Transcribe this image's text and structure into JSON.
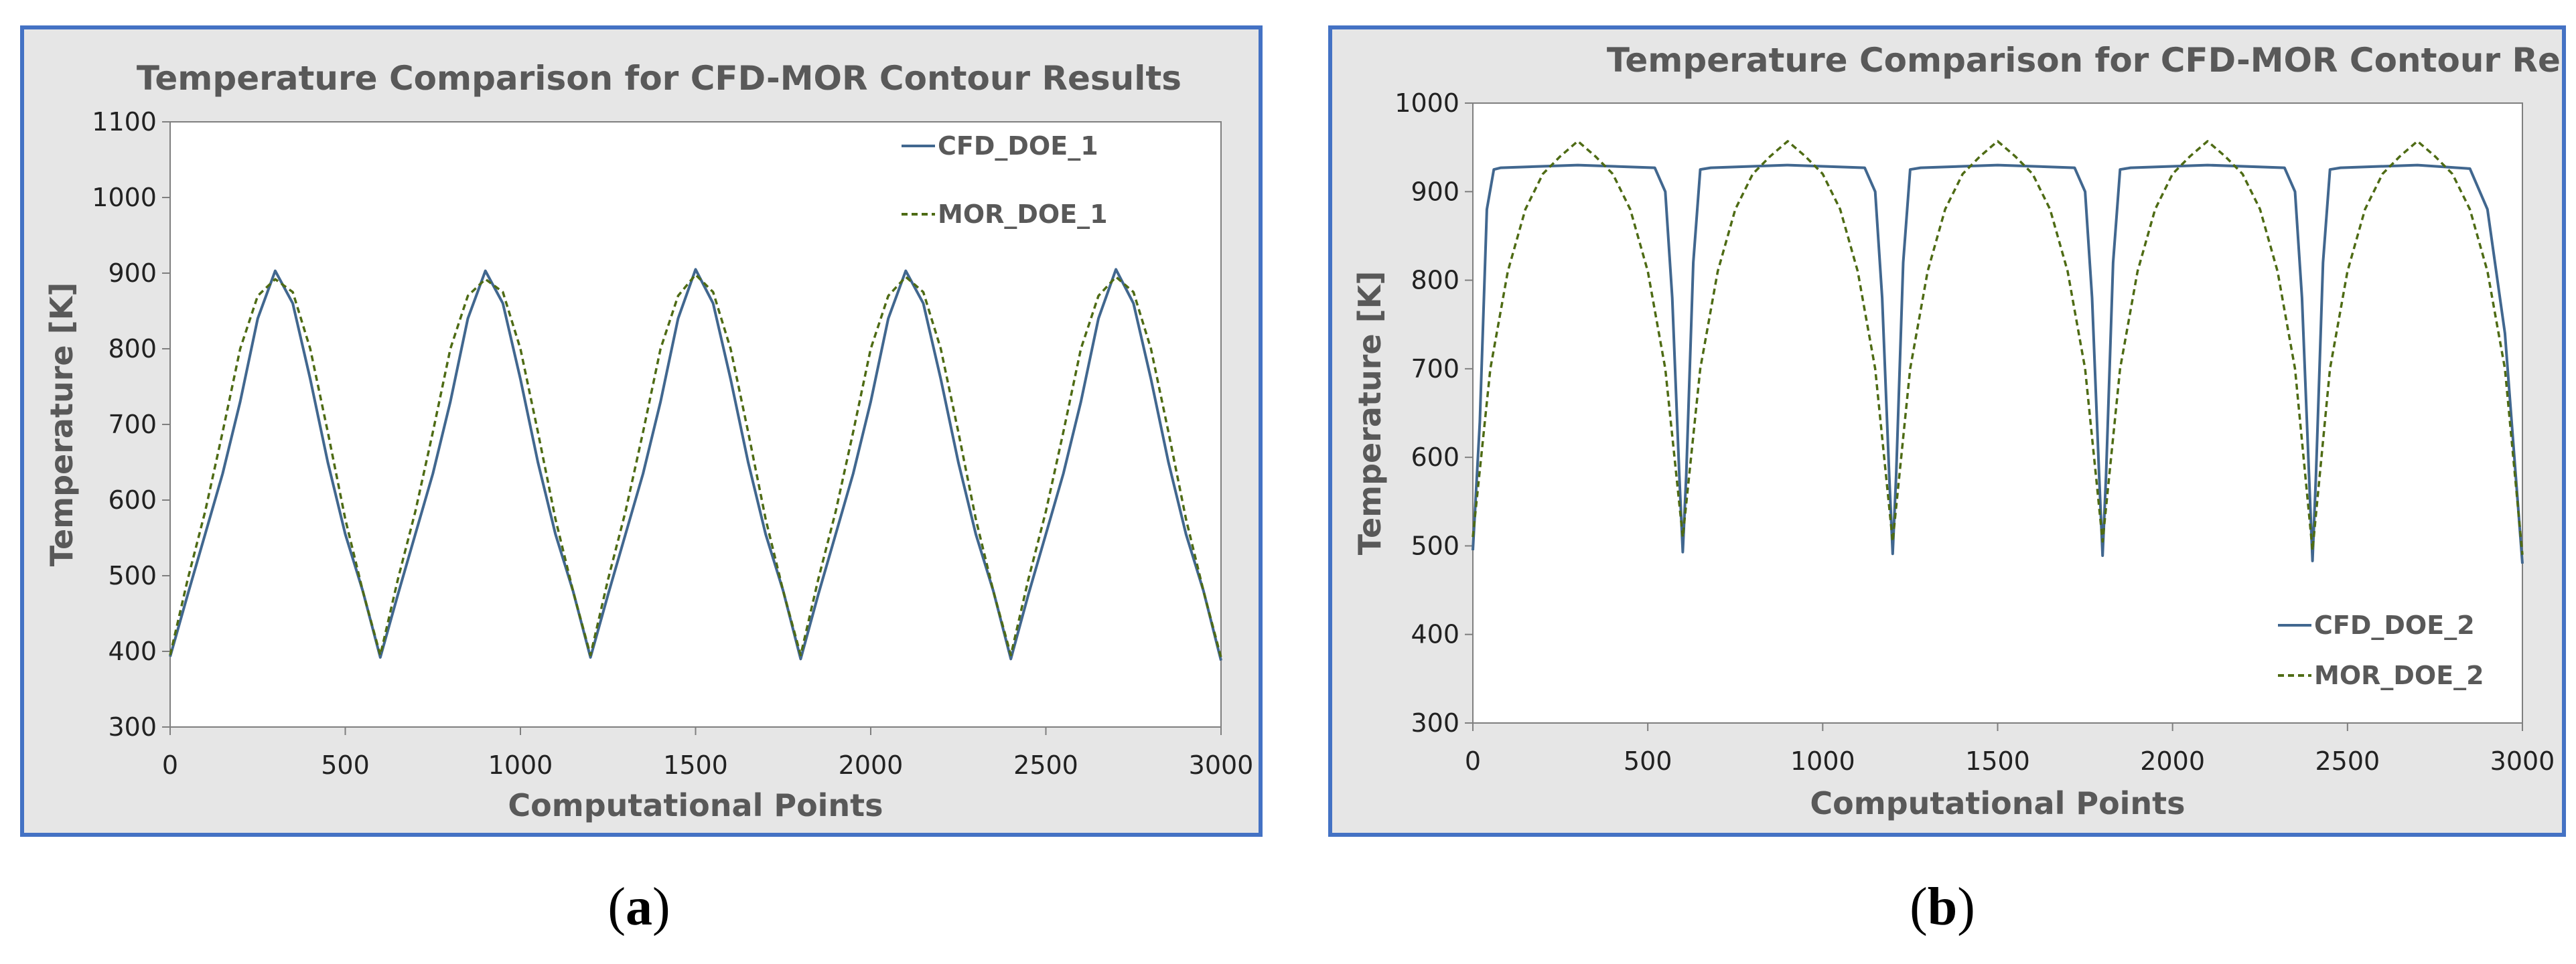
{
  "captions": {
    "a": "a",
    "b": "b"
  },
  "colors": {
    "cfd": "#41678F",
    "mor": "#4E6B14",
    "frame": "#4472C4",
    "panel_bg": "#e6e6e6"
  },
  "chart_data": [
    {
      "type": "line",
      "title": "Temperature Comparison for CFD-MOR Contour Results",
      "xlabel": "Computational Points",
      "ylabel": "Temperature [K]",
      "xlim": [
        0,
        3000
      ],
      "ylim": [
        300,
        1100
      ],
      "xticks": [
        0,
        500,
        1000,
        1500,
        2000,
        2500,
        3000
      ],
      "yticks": [
        300,
        400,
        500,
        600,
        700,
        800,
        900,
        1000,
        1100
      ],
      "grid": false,
      "legend_position": "top-right",
      "series": [
        {
          "name": "CFD_DOE_1",
          "style": "solid",
          "x": [
            0,
            50,
            100,
            150,
            200,
            250,
            300,
            350,
            400,
            450,
            500,
            550,
            600,
            650,
            700,
            750,
            800,
            850,
            900,
            950,
            1000,
            1050,
            1100,
            1150,
            1200,
            1250,
            1300,
            1350,
            1400,
            1450,
            1500,
            1550,
            1600,
            1650,
            1700,
            1750,
            1800,
            1850,
            1900,
            1950,
            2000,
            2050,
            2100,
            2150,
            2200,
            2250,
            2300,
            2350,
            2400,
            2450,
            2500,
            2550,
            2600,
            2650,
            2700,
            2750,
            2800,
            2850,
            2900,
            2950,
            3000
          ],
          "y": [
            393,
            475,
            555,
            635,
            730,
            840,
            903,
            860,
            760,
            650,
            555,
            480,
            392,
            475,
            555,
            635,
            730,
            840,
            903,
            860,
            760,
            650,
            555,
            480,
            392,
            475,
            555,
            635,
            730,
            840,
            905,
            860,
            760,
            650,
            555,
            480,
            390,
            475,
            555,
            635,
            730,
            840,
            903,
            860,
            760,
            650,
            555,
            480,
            390,
            475,
            555,
            635,
            730,
            840,
            905,
            860,
            760,
            650,
            555,
            480,
            388
          ]
        },
        {
          "name": "MOR_DOE_1",
          "style": "dashed",
          "x": [
            0,
            50,
            100,
            150,
            200,
            250,
            300,
            350,
            400,
            450,
            500,
            550,
            600,
            650,
            700,
            750,
            800,
            850,
            900,
            950,
            1000,
            1050,
            1100,
            1150,
            1200,
            1250,
            1300,
            1350,
            1400,
            1450,
            1500,
            1550,
            1600,
            1650,
            1700,
            1750,
            1800,
            1850,
            1900,
            1950,
            2000,
            2050,
            2100,
            2150,
            2200,
            2250,
            2300,
            2350,
            2400,
            2450,
            2500,
            2550,
            2600,
            2650,
            2700,
            2750,
            2800,
            2850,
            2900,
            2950,
            3000
          ],
          "y": [
            395,
            495,
            585,
            690,
            800,
            870,
            892,
            875,
            800,
            690,
            575,
            480,
            395,
            495,
            585,
            690,
            800,
            870,
            892,
            875,
            800,
            690,
            575,
            480,
            395,
            495,
            585,
            690,
            800,
            870,
            898,
            875,
            800,
            690,
            575,
            480,
            395,
            495,
            585,
            690,
            800,
            870,
            895,
            875,
            800,
            690,
            575,
            480,
            395,
            495,
            585,
            690,
            800,
            870,
            895,
            875,
            800,
            690,
            575,
            480,
            392
          ]
        }
      ]
    },
    {
      "type": "line",
      "title": "Temperature Comparison for CFD-MOR Contour Results",
      "xlabel": "Computational Points",
      "ylabel": "Temperature [K]",
      "xlim": [
        0,
        3000
      ],
      "ylim": [
        300,
        1000
      ],
      "xticks": [
        0,
        500,
        1000,
        1500,
        2000,
        2500,
        3000
      ],
      "yticks": [
        300,
        400,
        500,
        600,
        700,
        800,
        900,
        1000
      ],
      "grid": false,
      "legend_position": "bottom-right",
      "series": [
        {
          "name": "CFD_DOE_2",
          "style": "solid",
          "x": [
            0,
            20,
            40,
            60,
            80,
            300,
            520,
            550,
            570,
            590,
            600,
            610,
            630,
            650,
            680,
            900,
            1120,
            1150,
            1170,
            1190,
            1200,
            1210,
            1230,
            1250,
            1280,
            1500,
            1720,
            1750,
            1770,
            1790,
            1800,
            1810,
            1830,
            1850,
            1880,
            2100,
            2320,
            2350,
            2370,
            2390,
            2400,
            2410,
            2430,
            2450,
            2480,
            2700,
            2850,
            2900,
            2950,
            3000
          ],
          "y": [
            495,
            640,
            880,
            925,
            927,
            930,
            927,
            900,
            780,
            580,
            493,
            580,
            820,
            925,
            927,
            930,
            927,
            900,
            780,
            580,
            491,
            580,
            820,
            925,
            927,
            930,
            927,
            900,
            780,
            580,
            489,
            580,
            820,
            925,
            927,
            930,
            927,
            900,
            780,
            580,
            483,
            580,
            820,
            925,
            927,
            930,
            926,
            880,
            740,
            480
          ]
        },
        {
          "name": "MOR_DOE_2",
          "style": "dashed",
          "x": [
            0,
            50,
            100,
            150,
            200,
            250,
            300,
            350,
            400,
            450,
            500,
            550,
            600,
            650,
            700,
            750,
            800,
            850,
            900,
            950,
            1000,
            1050,
            1100,
            1150,
            1200,
            1250,
            1300,
            1350,
            1400,
            1450,
            1500,
            1550,
            1600,
            1650,
            1700,
            1750,
            1800,
            1850,
            1900,
            1950,
            2000,
            2050,
            2100,
            2150,
            2200,
            2250,
            2300,
            2350,
            2400,
            2450,
            2500,
            2550,
            2600,
            2650,
            2700,
            2750,
            2800,
            2850,
            2900,
            2950,
            3000
          ],
          "y": [
            510,
            700,
            810,
            880,
            920,
            940,
            957,
            940,
            920,
            880,
            810,
            700,
            510,
            700,
            810,
            880,
            920,
            940,
            957,
            940,
            920,
            880,
            810,
            700,
            505,
            700,
            810,
            880,
            920,
            940,
            957,
            940,
            920,
            880,
            810,
            700,
            505,
            700,
            810,
            880,
            920,
            940,
            957,
            940,
            920,
            880,
            810,
            700,
            495,
            700,
            810,
            880,
            920,
            940,
            957,
            940,
            920,
            880,
            810,
            700,
            490
          ]
        }
      ]
    }
  ]
}
